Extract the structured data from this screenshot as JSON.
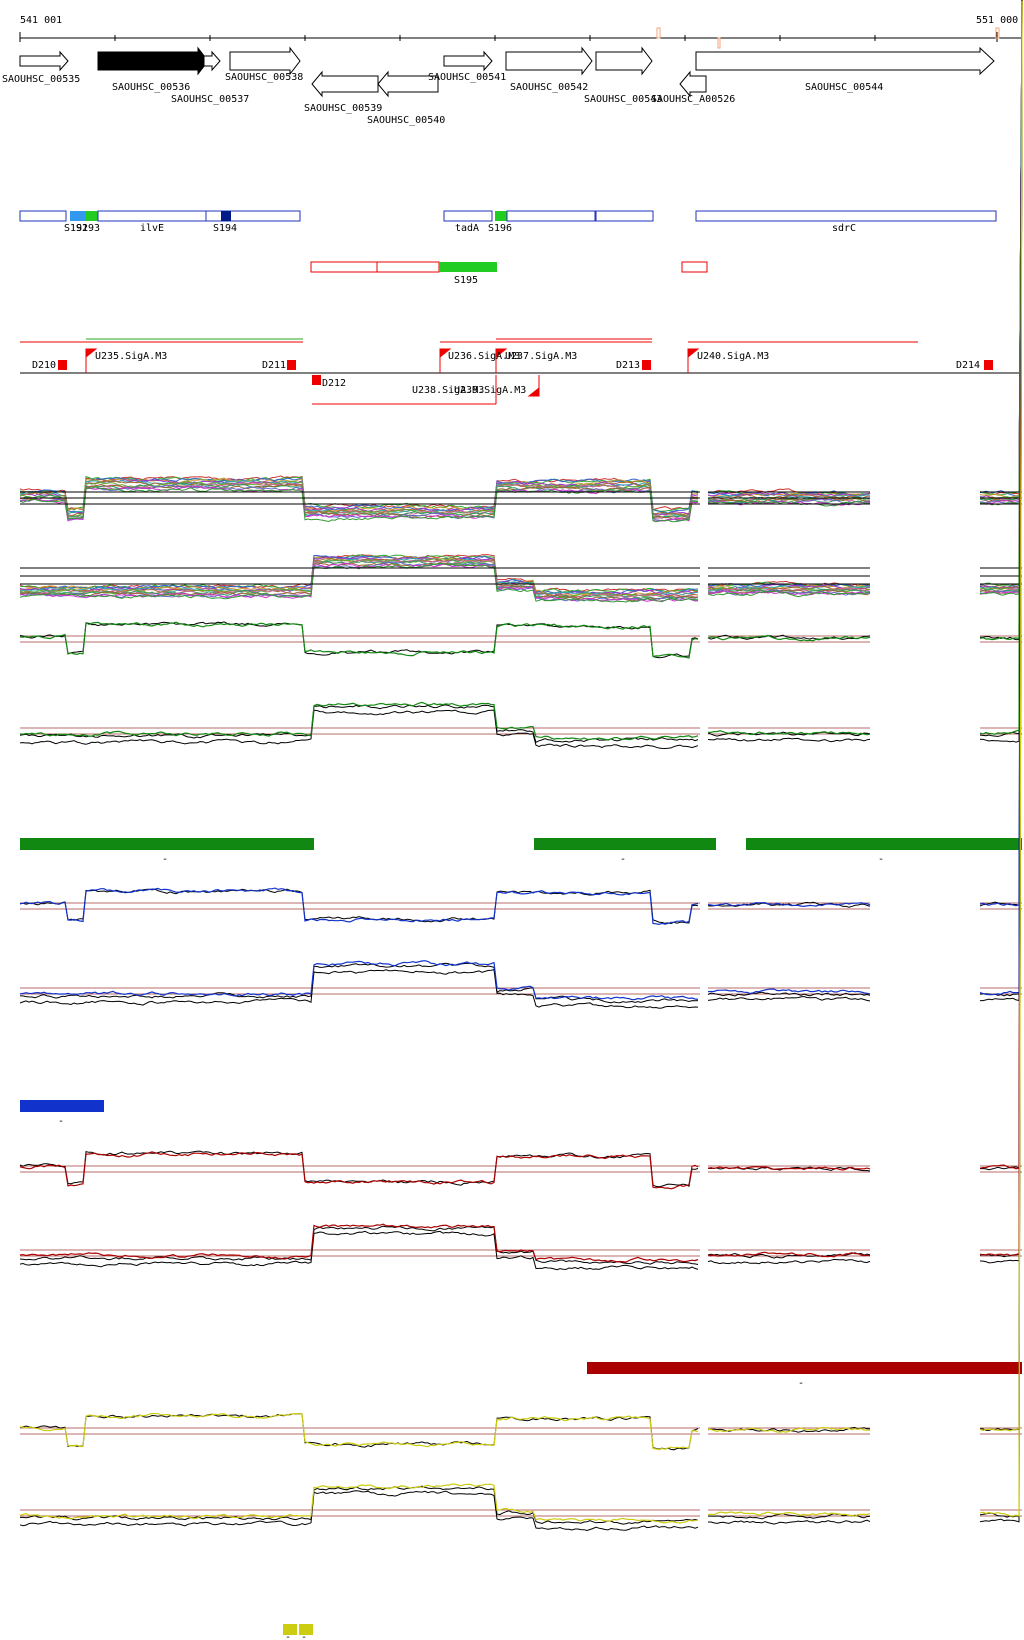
{
  "coords": {
    "start": "541 001",
    "end": "551 000"
  },
  "genes": [
    {
      "label": "SAOUHSC_00535"
    },
    {
      "label": "SAOUHSC_00536"
    },
    {
      "label": "SAOUHSC_00537"
    },
    {
      "label": "SAOUHSC_00538"
    },
    {
      "label": "SAOUHSC_00539"
    },
    {
      "label": "SAOUHSC_00540"
    },
    {
      "label": "SAOUHSC_00541"
    },
    {
      "label": "SAOUHSC_00542"
    },
    {
      "label": "SAOUHSC_00543"
    },
    {
      "label": "SAOUHSC_A00526"
    },
    {
      "label": "SAOUHSC_00544"
    }
  ],
  "features": [
    "S192",
    "S193",
    "ilvE",
    "S194",
    "tadA",
    "S196",
    "sdrC",
    "S195"
  ],
  "markers": [
    "D210",
    "U235.SigA.M3",
    "D211",
    "D212",
    "U236.SigA.M3",
    "U237.SigA.M3",
    "U238.SigA.M3",
    "U239.SigA.M3",
    "D213",
    "U240.SigA.M3",
    "D214"
  ],
  "segment_labels": [
    "-",
    "-",
    "-",
    "-",
    "-",
    "-",
    "-"
  ],
  "colors": {
    "gene_outline": "#000000",
    "gene_highlight": "#000000",
    "feature_outline": "#2233bb",
    "feature_green": "#22cc22",
    "feature_blue": "#3399ee",
    "feature_navy": "#001a88",
    "marker_red": "#ee0000",
    "green_track": "#118811",
    "blue_track": "#1133cc",
    "red_track": "#aa0000",
    "yellow_track": "#cccc11"
  }
}
